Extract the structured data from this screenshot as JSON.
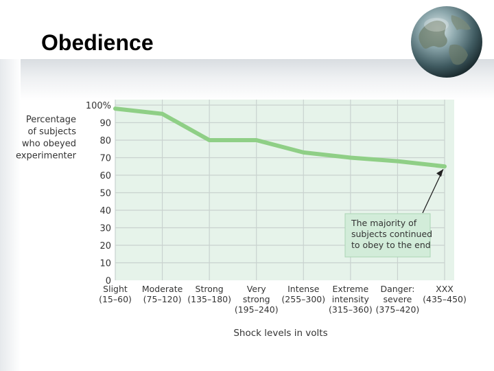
{
  "slide": {
    "title": "Obedience"
  },
  "chart_data": {
    "type": "line",
    "ylabel": [
      "Percentage",
      "of subjects",
      "who obeyed",
      "experimenter"
    ],
    "xlabel": "Shock levels in volts",
    "ylim": [
      0,
      100
    ],
    "yticks": [
      "0",
      "10",
      "20",
      "30",
      "40",
      "50",
      "60",
      "70",
      "80",
      "90",
      "100%"
    ],
    "categories": [
      [
        "Slight",
        "(15–60)"
      ],
      [
        "Moderate",
        "(75–120)"
      ],
      [
        "Strong",
        "(135–180)"
      ],
      [
        "Very",
        "strong",
        "(195–240)"
      ],
      [
        "Intense",
        "(255–300)"
      ],
      [
        "Extreme",
        "intensity",
        "(315–360)"
      ],
      [
        "Danger:",
        "severe",
        "(375–420)"
      ],
      [
        "XXX",
        "(435–450)"
      ]
    ],
    "series": [
      {
        "values": [
          98,
          95,
          80,
          80,
          73,
          70,
          68,
          65
        ]
      }
    ],
    "annotation": [
      "The majority of",
      "subjects continued",
      "to obey to the end"
    ],
    "grid": true,
    "colors": {
      "line": "#8fcf86",
      "grid": "#c9d2cf",
      "background": "#e6f3ea",
      "annotation_box": "#d2ecd9",
      "annotation_border": "#a9d4b4"
    }
  }
}
